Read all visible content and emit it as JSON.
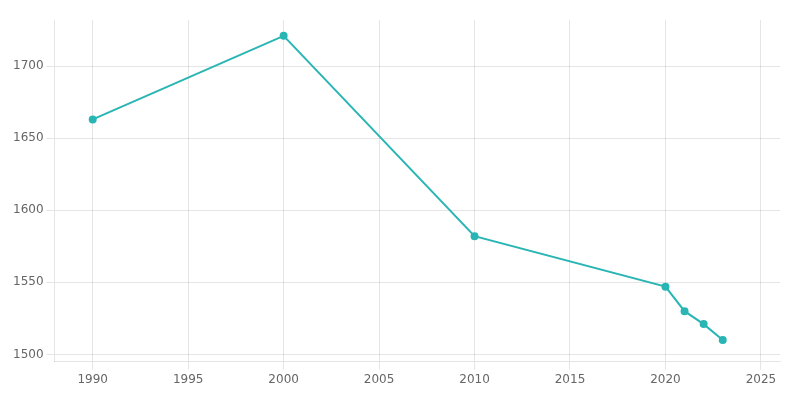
{
  "chart_data": {
    "type": "line",
    "x": [
      1990,
      2000,
      2010,
      2020,
      2021,
      2022,
      2023
    ],
    "values": [
      1663,
      1721,
      1582,
      1547,
      1530,
      1521,
      1510
    ],
    "color": "#2ab5b5",
    "marker": "circle",
    "xlim": [
      1988,
      2026
    ],
    "ylim": [
      1495,
      1732
    ],
    "xticks": [
      1990,
      1995,
      2000,
      2005,
      2010,
      2015,
      2020,
      2025
    ],
    "yticks": [
      1500,
      1550,
      1600,
      1650,
      1700
    ],
    "grid": true
  }
}
